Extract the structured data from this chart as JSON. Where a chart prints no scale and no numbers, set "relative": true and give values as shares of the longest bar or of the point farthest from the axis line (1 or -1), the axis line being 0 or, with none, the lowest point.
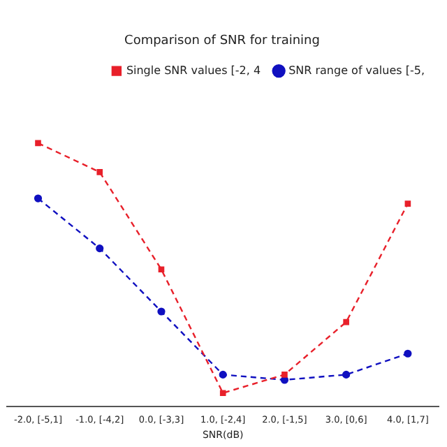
{
  "chart_data": {
    "type": "line",
    "title": "Comparison of SNR for training",
    "xlabel": "SNR(dB)",
    "relative": true,
    "categories": [
      "-2.0, [-5,1]",
      "-1.0, [-4,2]",
      "0.0, [-3,3]",
      "1.0, [-2,4]",
      "2.0, [-1,5]",
      "3.0, [0,6]",
      "4.0, [1,7]"
    ],
    "series": [
      {
        "name": "Single SNR values [-2, 4",
        "color": "#e8202a",
        "marker": "square",
        "values": [
          1,
          0.89,
          0.52,
          0.05,
          0.12,
          0.32,
          0.77
        ]
      },
      {
        "name": "SNR range of values [-5,",
        "color": "#1010c0",
        "marker": "circle",
        "values": [
          0.79,
          0.6,
          0.36,
          0.12,
          0.1,
          0.12,
          0.2
        ]
      }
    ],
    "line_style": "dashed",
    "legend": "top right",
    "grid": false
  }
}
